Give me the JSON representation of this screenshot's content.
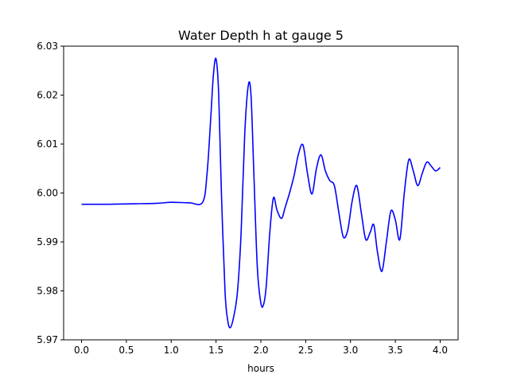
{
  "chart_data": {
    "type": "line",
    "title": "Water Depth h at gauge 5",
    "xlabel": "hours",
    "ylabel": "",
    "xlim": [
      -0.2,
      4.2
    ],
    "ylim": [
      5.97,
      6.03
    ],
    "x_ticks": [
      0.0,
      0.5,
      1.0,
      1.5,
      2.0,
      2.5,
      3.0,
      3.5,
      4.0
    ],
    "x_tick_labels": [
      "0.0",
      "0.5",
      "1.0",
      "1.5",
      "2.0",
      "2.5",
      "3.0",
      "3.5",
      "4.0"
    ],
    "y_ticks": [
      5.97,
      5.98,
      5.99,
      6.0,
      6.01,
      6.02,
      6.03
    ],
    "y_tick_labels": [
      "5.97",
      "5.98",
      "5.99",
      "6.00",
      "6.01",
      "6.02",
      "6.03"
    ],
    "grid": false,
    "legend": "none",
    "series": [
      {
        "color": "#0000ff",
        "x": [
          0.0,
          0.3,
          0.6,
          0.85,
          1.0,
          1.2,
          1.35,
          1.4,
          1.44,
          1.47,
          1.5,
          1.53,
          1.56,
          1.6,
          1.63,
          1.66,
          1.7,
          1.74,
          1.78,
          1.82,
          1.86,
          1.89,
          1.92,
          1.96,
          2.0,
          2.03,
          2.06,
          2.1,
          2.14,
          2.18,
          2.23,
          2.27,
          2.32,
          2.37,
          2.42,
          2.47,
          2.52,
          2.57,
          2.62,
          2.67,
          2.72,
          2.77,
          2.82,
          2.87,
          2.92,
          2.97,
          3.02,
          3.07,
          3.12,
          3.17,
          3.22,
          3.26,
          3.3,
          3.35,
          3.4,
          3.45,
          3.5,
          3.55,
          3.6,
          3.65,
          3.7,
          3.75,
          3.8,
          3.85,
          3.9,
          3.95,
          4.0
        ],
        "y": [
          5.9977,
          5.9977,
          5.9978,
          5.9979,
          5.9981,
          5.998,
          5.9981,
          6.004,
          6.015,
          6.024,
          6.0274,
          6.02,
          6.0,
          5.98,
          5.974,
          5.9725,
          5.975,
          5.98,
          5.992,
          6.012,
          6.022,
          6.02,
          6.005,
          5.985,
          5.9775,
          5.9772,
          5.981,
          5.992,
          5.999,
          5.9965,
          5.9948,
          5.997,
          6.0,
          6.0035,
          6.008,
          6.0098,
          6.004,
          5.9998,
          6.005,
          6.0078,
          6.0045,
          6.0025,
          6.0015,
          5.996,
          5.991,
          5.9925,
          5.9985,
          6.0015,
          5.996,
          5.9905,
          5.992,
          5.9935,
          5.988,
          5.984,
          5.99,
          5.9963,
          5.9945,
          5.9905,
          6.0,
          6.0068,
          6.0045,
          6.0015,
          6.004,
          6.0063,
          6.0055,
          6.0045,
          6.0052
        ]
      }
    ]
  }
}
